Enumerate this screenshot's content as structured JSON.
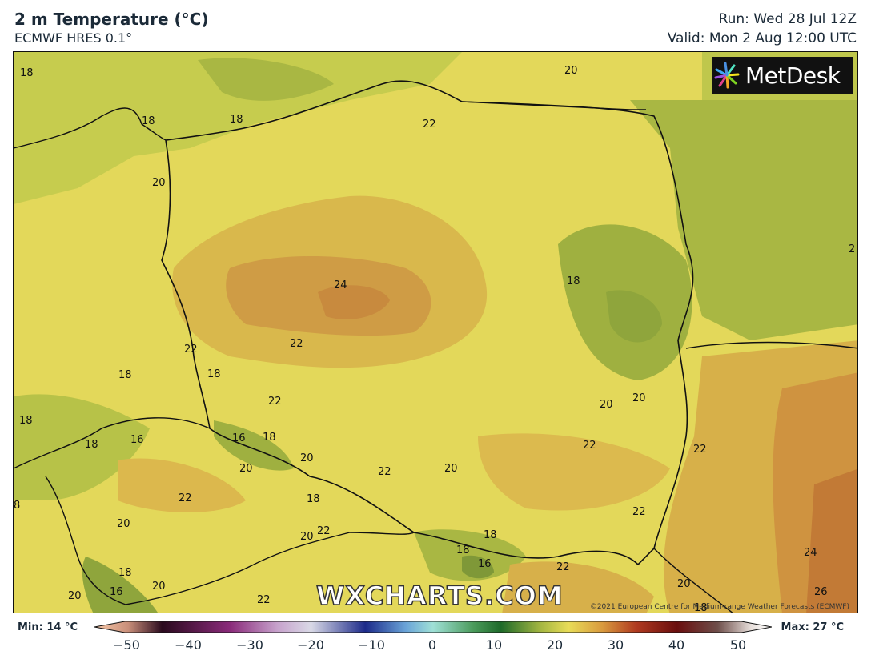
{
  "header": {
    "title": "2 m Temperature (°C)",
    "model": "ECMWF HRES 0.1°",
    "run": "Run: Wed 28 Jul 12Z",
    "valid": "Valid: Mon 2 Aug 12:00 UTC"
  },
  "logo": {
    "brand": "MetDesk"
  },
  "watermark": "WXCHARTS.COM",
  "copyright": "©2021 European Centre for Medium-range Weather Forecasts (ECMWF)",
  "colorbar": {
    "min_label": "Min: 14 °C",
    "max_label": "Max: 27 °C",
    "ticks": [
      "−50",
      "−40",
      "−30",
      "−20",
      "−10",
      "0",
      "10",
      "20",
      "30",
      "40",
      "50"
    ]
  },
  "map_labels": [
    {
      "text": "18",
      "name": "contour-label-18-nw"
    },
    {
      "text": "20",
      "name": "contour-label-20-ne"
    },
    {
      "text": "18",
      "name": "contour-label-18-rugen"
    },
    {
      "text": "18",
      "name": "contour-label-18-coast"
    },
    {
      "text": "22",
      "name": "contour-label-22-gdansk"
    },
    {
      "text": "20",
      "name": "contour-label-20-west"
    },
    {
      "text": "24",
      "name": "contour-label-24-center"
    },
    {
      "text": "18",
      "name": "contour-label-18-east"
    },
    {
      "text": "22",
      "name": "contour-label-22-border"
    },
    {
      "text": "22",
      "name": "contour-label-22-central"
    },
    {
      "text": "18",
      "name": "contour-label-18-saxony"
    },
    {
      "text": "18",
      "name": "contour-label-18-erz"
    },
    {
      "text": "22",
      "name": "contour-label-22-silesia"
    },
    {
      "text": "18",
      "name": "contour-label-18-far-west"
    },
    {
      "text": "18",
      "name": "contour-label-18-bohemia"
    },
    {
      "text": "16",
      "name": "contour-label-16-bohemia"
    },
    {
      "text": "16",
      "name": "contour-label-16-sudety"
    },
    {
      "text": "18",
      "name": "contour-label-18-sudety"
    },
    {
      "text": "20",
      "name": "contour-label-20-bohemia"
    },
    {
      "text": "20",
      "name": "contour-label-20-opole"
    },
    {
      "text": "22",
      "name": "contour-label-22-ostrava"
    },
    {
      "text": "20",
      "name": "contour-label-20-krakow"
    },
    {
      "text": "20",
      "name": "contour-label-20-lublin"
    },
    {
      "text": "20",
      "name": "contour-label-20-bug"
    },
    {
      "text": "22",
      "name": "contour-label-22-roztocze"
    },
    {
      "text": "22",
      "name": "contour-label-22-ukraine"
    },
    {
      "text": "22",
      "name": "contour-label-22-prague"
    },
    {
      "text": "18",
      "name": "contour-label-18-moravia"
    },
    {
      "text": "20",
      "name": "contour-label-20-moravia"
    },
    {
      "text": "22",
      "name": "contour-label-22-moravia"
    },
    {
      "text": "8",
      "name": "contour-label-8-edge"
    },
    {
      "text": "20",
      "name": "contour-label-20-sw"
    },
    {
      "text": "18",
      "name": "contour-label-18-tatra"
    },
    {
      "text": "18",
      "name": "contour-label-18-tatra-w"
    },
    {
      "text": "16",
      "name": "contour-label-16-tatra"
    },
    {
      "text": "22",
      "name": "contour-label-22-slovakia"
    },
    {
      "text": "22",
      "name": "contour-label-22-carpathians"
    },
    {
      "text": "24",
      "name": "contour-label-24-se"
    },
    {
      "text": "26",
      "name": "contour-label-26-se"
    },
    {
      "text": "20",
      "name": "contour-label-20-se"
    },
    {
      "text": "18",
      "name": "contour-label-18-austria"
    },
    {
      "text": "20",
      "name": "contour-label-20-austria"
    },
    {
      "text": "16",
      "name": "contour-label-16-alps"
    },
    {
      "text": "20",
      "name": "contour-label-20-alps"
    },
    {
      "text": "22",
      "name": "contour-label-22-vienna"
    },
    {
      "text": "18",
      "name": "contour-label-18-hungary"
    },
    {
      "text": "2",
      "name": "contour-label-edge-e"
    }
  ]
}
